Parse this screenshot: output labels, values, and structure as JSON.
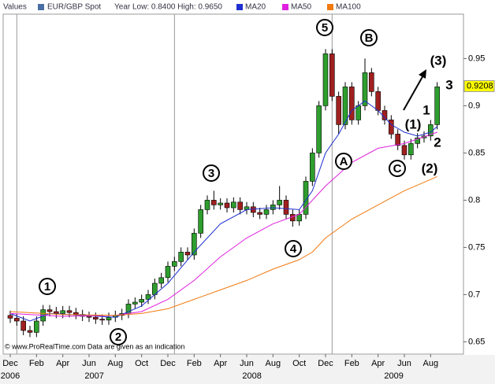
{
  "chart_data": {
    "type": "candlestick",
    "legend": {
      "label": "Values",
      "instrument": "EUR/GBP Spot",
      "range": "Year Low: 0.8400 High: 0.9650"
    },
    "instrument_color": "#4a6fa5",
    "up_color": "#2e9e2e",
    "down_color": "#a01f1f",
    "x": [
      0,
      0.5,
      1,
      1.5,
      2,
      2.5,
      3,
      3.5,
      4,
      4.5,
      5,
      5.5,
      6,
      6.5,
      7,
      7.5,
      8,
      8.5,
      9,
      9.5,
      10,
      10.5,
      11,
      11.5,
      12,
      12.5,
      13,
      13.5,
      14,
      14.5,
      15,
      15.5,
      16,
      16.5,
      17,
      17.5,
      18,
      18.5,
      19,
      19.5,
      20,
      20.5,
      21,
      21.5,
      22,
      22.5,
      23,
      23.5,
      24,
      24.5,
      25,
      25.5,
      26,
      26.5,
      27,
      27.5,
      28,
      28.5,
      29,
      29.5,
      30,
      30.5,
      31,
      31.5,
      32,
      32.5
    ],
    "open": [
      0.678,
      0.675,
      0.672,
      0.662,
      0.66,
      0.672,
      0.684,
      0.682,
      0.68,
      0.683,
      0.681,
      0.679,
      0.677,
      0.676,
      0.674,
      0.673,
      0.676,
      0.678,
      0.68,
      0.69,
      0.692,
      0.695,
      0.7,
      0.712,
      0.718,
      0.73,
      0.735,
      0.745,
      0.742,
      0.765,
      0.79,
      0.8,
      0.795,
      0.797,
      0.792,
      0.798,
      0.79,
      0.793,
      0.787,
      0.785,
      0.79,
      0.795,
      0.8,
      0.785,
      0.778,
      0.785,
      0.82,
      0.85,
      0.9,
      0.955,
      0.91,
      0.88,
      0.92,
      0.885,
      0.9,
      0.935,
      0.915,
      0.895,
      0.885,
      0.87,
      0.858,
      0.848,
      0.86,
      0.866,
      0.868,
      0.88
    ],
    "high": [
      0.683,
      0.68,
      0.677,
      0.667,
      0.677,
      0.689,
      0.689,
      0.687,
      0.688,
      0.688,
      0.686,
      0.684,
      0.682,
      0.681,
      0.679,
      0.681,
      0.683,
      0.685,
      0.695,
      0.697,
      0.7,
      0.705,
      0.717,
      0.723,
      0.735,
      0.74,
      0.75,
      0.75,
      0.77,
      0.795,
      0.805,
      0.81,
      0.802,
      0.802,
      0.803,
      0.803,
      0.798,
      0.798,
      0.792,
      0.795,
      0.8,
      0.815,
      0.805,
      0.79,
      0.79,
      0.825,
      0.855,
      0.905,
      0.96,
      0.96,
      0.915,
      0.925,
      0.925,
      0.905,
      0.95,
      0.94,
      0.92,
      0.9,
      0.89,
      0.875,
      0.863,
      0.865,
      0.871,
      0.873,
      0.885,
      0.925
    ],
    "low": [
      0.67,
      0.667,
      0.657,
      0.655,
      0.655,
      0.667,
      0.677,
      0.675,
      0.675,
      0.676,
      0.674,
      0.672,
      0.671,
      0.669,
      0.668,
      0.668,
      0.671,
      0.673,
      0.675,
      0.685,
      0.687,
      0.69,
      0.695,
      0.707,
      0.713,
      0.725,
      0.73,
      0.737,
      0.737,
      0.76,
      0.785,
      0.79,
      0.79,
      0.787,
      0.787,
      0.785,
      0.785,
      0.782,
      0.78,
      0.78,
      0.785,
      0.79,
      0.78,
      0.772,
      0.773,
      0.78,
      0.815,
      0.845,
      0.895,
      0.905,
      0.87,
      0.875,
      0.88,
      0.88,
      0.895,
      0.91,
      0.89,
      0.88,
      0.865,
      0.853,
      0.843,
      0.843,
      0.855,
      0.861,
      0.863,
      0.875
    ],
    "close": [
      0.675,
      0.672,
      0.662,
      0.66,
      0.672,
      0.684,
      0.682,
      0.68,
      0.683,
      0.681,
      0.679,
      0.677,
      0.676,
      0.674,
      0.673,
      0.676,
      0.678,
      0.68,
      0.69,
      0.692,
      0.695,
      0.7,
      0.712,
      0.718,
      0.73,
      0.735,
      0.745,
      0.742,
      0.765,
      0.79,
      0.8,
      0.795,
      0.797,
      0.792,
      0.798,
      0.79,
      0.793,
      0.787,
      0.785,
      0.79,
      0.795,
      0.8,
      0.785,
      0.778,
      0.785,
      0.82,
      0.85,
      0.9,
      0.955,
      0.91,
      0.88,
      0.92,
      0.885,
      0.9,
      0.935,
      0.915,
      0.895,
      0.885,
      0.87,
      0.858,
      0.848,
      0.86,
      0.866,
      0.868,
      0.88,
      0.92
    ],
    "series": [
      {
        "name": "MA20",
        "color": "#1f2fd0",
        "x": [
          0,
          1.5,
          3,
          8,
          10,
          12,
          14,
          16,
          18,
          20,
          22,
          23,
          24,
          25,
          26,
          27,
          28,
          29,
          30,
          31,
          32,
          32.5
        ],
        "values": [
          0.68,
          0.672,
          0.68,
          0.676,
          0.688,
          0.712,
          0.745,
          0.775,
          0.79,
          0.792,
          0.79,
          0.81,
          0.85,
          0.87,
          0.895,
          0.905,
          0.895,
          0.88,
          0.872,
          0.868,
          0.872,
          0.878
        ]
      },
      {
        "name": "MA50",
        "color": "#e020e0",
        "x": [
          0,
          4,
          8,
          10,
          12,
          14,
          16,
          18,
          20,
          22,
          24,
          26,
          28,
          30,
          32.5
        ],
        "values": [
          0.68,
          0.677,
          0.678,
          0.682,
          0.695,
          0.715,
          0.74,
          0.76,
          0.775,
          0.785,
          0.815,
          0.84,
          0.855,
          0.86,
          0.872
        ]
      },
      {
        "name": "MA100",
        "color": "#f07a10",
        "x": [
          0,
          4,
          8,
          10,
          12,
          14,
          16,
          18,
          20,
          22,
          23,
          24,
          26,
          28,
          30,
          32.5
        ],
        "values": [
          0.682,
          0.679,
          0.678,
          0.68,
          0.685,
          0.695,
          0.705,
          0.715,
          0.727,
          0.737,
          0.745,
          0.76,
          0.78,
          0.795,
          0.81,
          0.825
        ]
      }
    ],
    "xlim": [
      -0.54,
      34.5
    ],
    "ylim": [
      0.637,
      0.997
    ],
    "yticks": [
      0.65,
      0.7,
      0.75,
      0.8,
      0.85,
      0.9,
      0.95
    ],
    "xticks": [
      {
        "value": 0,
        "label": "Dec"
      },
      {
        "value": 2,
        "label": "Feb"
      },
      {
        "value": 4,
        "label": "Apr"
      },
      {
        "value": 6,
        "label": "Jun"
      },
      {
        "value": 8,
        "label": "Aug"
      },
      {
        "value": 10,
        "label": "Oct"
      },
      {
        "value": 12,
        "label": "Dec"
      },
      {
        "value": 14,
        "label": "Feb"
      },
      {
        "value": 16,
        "label": "Apr"
      },
      {
        "value": 18,
        "label": "Jun"
      },
      {
        "value": 20,
        "label": "Aug"
      },
      {
        "value": 22,
        "label": "Oct"
      },
      {
        "value": 24,
        "label": "Dec"
      },
      {
        "value": 26,
        "label": "Feb"
      },
      {
        "value": 28,
        "label": "Apr"
      },
      {
        "value": 30,
        "label": "Jun"
      },
      {
        "value": 32,
        "label": "Aug"
      }
    ],
    "year_ticks": [
      {
        "value": 0,
        "label": "2006"
      },
      {
        "value": 6.4,
        "label": "2007"
      },
      {
        "value": 18.4,
        "label": "2008"
      },
      {
        "value": 29.2,
        "label": "2009"
      }
    ],
    "year_lines": [
      0.5,
      12.5,
      24.5
    ],
    "last_price": {
      "value": 0.9208,
      "label": "0.9208"
    },
    "annotations": [
      "1",
      "2",
      "3",
      "4",
      "5",
      "A",
      "B",
      "C",
      "(1)",
      "1",
      "2",
      "(2)",
      "(3)",
      "3"
    ],
    "copyright": "© www.ProRealTime.com Data are given as an indication"
  }
}
